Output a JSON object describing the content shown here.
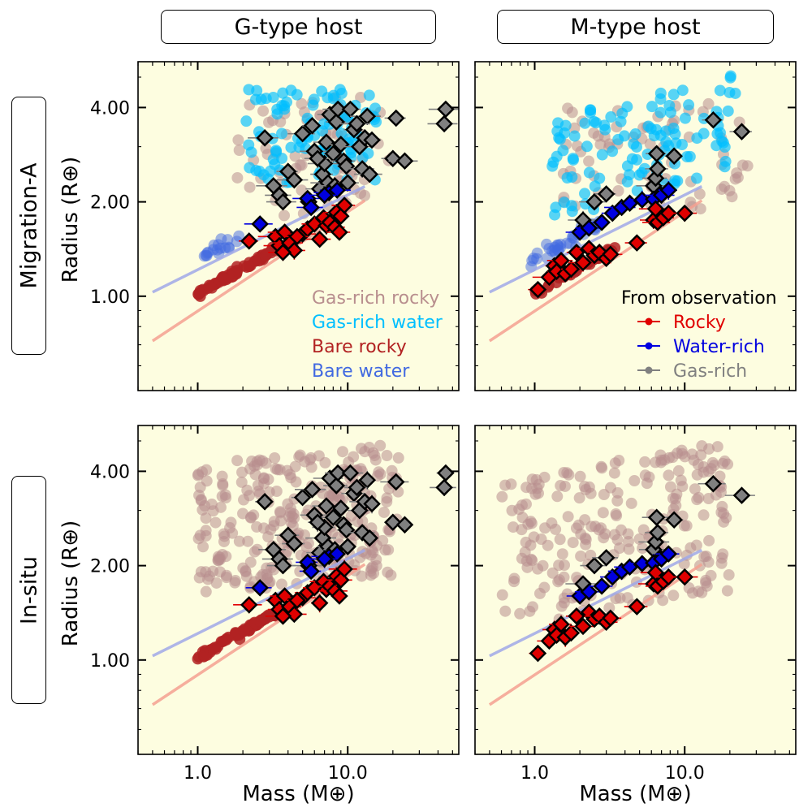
{
  "column_headers": [
    "G-type host",
    "M-type host"
  ],
  "row_headers": [
    "Migration-A",
    "In-situ"
  ],
  "colors": {
    "background": "#fdfde0",
    "gas_rich_rocky": "#b88e8e",
    "gas_rich_water": "#00bfff",
    "bare_rocky": "#b22222",
    "bare_water": "#4169e1",
    "obs_rocky": "#e00000",
    "obs_water": "#0000e0",
    "obs_gas": "#808080",
    "rocky_line": "#f4a090",
    "water_line": "#a0a8e8"
  },
  "chart_data": {
    "type": "scatter",
    "xscale": "log",
    "yscale": "log",
    "xlim": [
      0.4,
      55
    ],
    "ylim": [
      0.5,
      5.6
    ],
    "xlabel": "Mass (M⊕)",
    "ylabel": "Radius (R⊕)",
    "xticks": [
      1.0,
      10.0
    ],
    "xtick_labels": [
      "1.0",
      "10.0"
    ],
    "yticks": [
      1.0,
      2.0,
      4.0
    ],
    "ytick_labels": [
      "1.00",
      "2.00",
      "4.00"
    ],
    "panel_legend": [
      "Gas-rich rocky",
      "Gas-rich water",
      "Bare rocky",
      "Bare water"
    ],
    "obs_legend_title": "From observation",
    "obs_legend": [
      "Rocky",
      "Water-rich",
      "Gas-rich"
    ],
    "lines": {
      "rocky": {
        "x": [
          0.5,
          13
        ],
        "y": [
          0.72,
          2.02
        ]
      },
      "water": {
        "x": [
          0.5,
          13
        ],
        "y": [
          1.03,
          2.24
        ]
      }
    },
    "observations": {
      "G": {
        "rocky": [
          [
            2.2,
            1.5
          ],
          [
            3.3,
            1.55
          ],
          [
            3.5,
            1.45
          ],
          [
            3.8,
            1.6
          ],
          [
            4.1,
            1.48
          ],
          [
            4.4,
            1.4
          ],
          [
            3.7,
            1.38
          ],
          [
            5.0,
            1.58
          ],
          [
            5.4,
            1.64
          ],
          [
            6.0,
            1.7
          ],
          [
            6.5,
            1.52
          ],
          [
            6.9,
            1.78
          ],
          [
            7.2,
            1.68
          ],
          [
            7.6,
            1.72
          ],
          [
            8.2,
            1.66
          ],
          [
            8.4,
            1.85
          ],
          [
            9.0,
            1.8
          ],
          [
            9.5,
            1.95
          ],
          [
            8.8,
            1.6
          ],
          [
            4.6,
            1.55
          ]
        ],
        "water": [
          [
            2.6,
            1.7
          ],
          [
            5.4,
            2.05
          ],
          [
            5.7,
            1.92
          ],
          [
            7.5,
            2.14
          ],
          [
            8.5,
            2.18
          ],
          [
            7.0,
            2.1
          ]
        ],
        "gas": [
          [
            2.8,
            3.2
          ],
          [
            3.2,
            2.25
          ],
          [
            3.5,
            2.1
          ],
          [
            3.7,
            2.0
          ],
          [
            4.0,
            2.5
          ],
          [
            4.4,
            2.35
          ],
          [
            5.0,
            3.3
          ],
          [
            5.8,
            3.5
          ],
          [
            6.0,
            2.9
          ],
          [
            6.5,
            2.2
          ],
          [
            6.8,
            2.45
          ],
          [
            7.0,
            2.65
          ],
          [
            7.2,
            3.1
          ],
          [
            7.4,
            2.3
          ],
          [
            7.6,
            3.8
          ],
          [
            8.0,
            2.85
          ],
          [
            8.2,
            2.25
          ],
          [
            8.4,
            3.6
          ],
          [
            8.6,
            3.95
          ],
          [
            9.0,
            3.05
          ],
          [
            9.4,
            2.7
          ],
          [
            9.8,
            2.6
          ],
          [
            10.4,
            3.95
          ],
          [
            11,
            3.4
          ],
          [
            12,
            3.0
          ],
          [
            12.5,
            2.55
          ],
          [
            13,
            3.2
          ],
          [
            13.5,
            3.75
          ],
          [
            14,
            2.45
          ],
          [
            21,
            3.7
          ],
          [
            20,
            2.75
          ],
          [
            24,
            2.7
          ],
          [
            45,
            3.95
          ],
          [
            44,
            3.55
          ],
          [
            10.0,
            2.3
          ],
          [
            6.3,
            2.75
          ],
          [
            11.5,
            3.55
          ],
          [
            14.5,
            3.15
          ],
          [
            5.5,
            2.0
          ]
        ]
      },
      "M": {
        "rocky": [
          [
            1.05,
            1.05
          ],
          [
            1.25,
            1.15
          ],
          [
            1.35,
            1.25
          ],
          [
            1.4,
            1.2
          ],
          [
            1.5,
            1.3
          ],
          [
            1.6,
            1.18
          ],
          [
            1.75,
            1.22
          ],
          [
            1.9,
            1.38
          ],
          [
            2.1,
            1.28
          ],
          [
            2.3,
            1.42
          ],
          [
            2.5,
            1.35
          ],
          [
            2.7,
            1.38
          ],
          [
            3.0,
            1.32
          ],
          [
            3.2,
            1.36
          ],
          [
            4.8,
            1.48
          ],
          [
            6.2,
            1.75
          ],
          [
            6.4,
            1.9
          ],
          [
            6.6,
            1.72
          ],
          [
            7.2,
            1.78
          ],
          [
            7.8,
            1.84
          ],
          [
            10.0,
            1.84
          ]
        ],
        "water": [
          [
            2.0,
            1.6
          ],
          [
            2.3,
            1.65
          ],
          [
            2.8,
            1.72
          ],
          [
            3.3,
            1.84
          ],
          [
            3.8,
            1.92
          ],
          [
            4.3,
            1.98
          ],
          [
            5.2,
            2.03
          ],
          [
            6.2,
            2.04
          ],
          [
            7.0,
            2.1
          ],
          [
            7.8,
            2.18
          ]
        ],
        "gas": [
          [
            2.1,
            1.75
          ],
          [
            2.5,
            2.0
          ],
          [
            3.0,
            2.12
          ],
          [
            6.2,
            2.25
          ],
          [
            6.4,
            2.38
          ],
          [
            6.6,
            2.55
          ],
          [
            6.5,
            2.85
          ],
          [
            8.5,
            2.8
          ],
          [
            15.5,
            3.65
          ],
          [
            24.0,
            3.35
          ]
        ]
      }
    },
    "panels": [
      {
        "row": 0,
        "col": 0,
        "host": "G",
        "formation": "Migration-A",
        "series": [
          "Gas-rich rocky",
          "Gas-rich water",
          "Bare rocky",
          "Bare water"
        ]
      },
      {
        "row": 0,
        "col": 1,
        "host": "M",
        "formation": "Migration-A",
        "series": [
          "Gas-rich rocky",
          "Gas-rich water",
          "Bare rocky",
          "Bare water"
        ]
      },
      {
        "row": 1,
        "col": 0,
        "host": "G",
        "formation": "In-situ",
        "series": [
          "Gas-rich rocky",
          "Bare rocky"
        ]
      },
      {
        "row": 1,
        "col": 1,
        "host": "M",
        "formation": "In-situ",
        "series": [
          "Gas-rich rocky"
        ]
      }
    ]
  }
}
